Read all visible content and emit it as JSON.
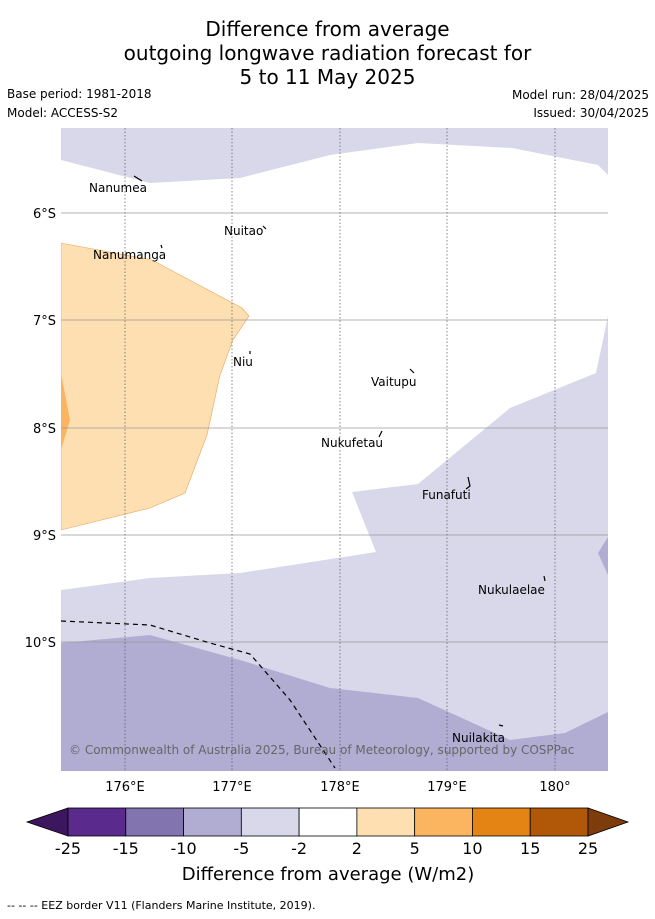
{
  "title_lines": [
    "Difference from average",
    "outgoing longwave radiation forecast for",
    "5 to 11 May 2025"
  ],
  "meta": {
    "base_period": "Base period: 1981-2018",
    "model": "Model: ACCESS-S2",
    "model_run": "Model run: 28/04/2025",
    "issued": "Issued: 30/04/2025"
  },
  "map": {
    "longitude_labels": [
      "176°E",
      "177°E",
      "178°E",
      "179°E",
      "180°"
    ],
    "latitude_labels": [
      "6°S",
      "7°S",
      "8°S",
      "9°S",
      "10°S"
    ],
    "places": [
      {
        "name": "Nanumea"
      },
      {
        "name": "Nuitao"
      },
      {
        "name": "Nanumanga"
      },
      {
        "name": "Niu"
      },
      {
        "name": "Vaitupu"
      },
      {
        "name": "Nukufetau"
      },
      {
        "name": "Funafuti"
      },
      {
        "name": "Nukulaelae"
      },
      {
        "name": "Nuilakita"
      }
    ],
    "copyright": "© Commonwealth of Australia 2025, Bureau of Meteorology, supported by COSPPac"
  },
  "colorbar": {
    "tick_labels": [
      "-25",
      "-15",
      "-10",
      "-5",
      "-2",
      "2",
      "5",
      "10",
      "15",
      "25"
    ],
    "colors": [
      "#3d1660",
      "#5a2a8c",
      "#8274ae",
      "#b1acd2",
      "#d8d8ea",
      "#ffffff",
      "#fddfb2",
      "#fbb560",
      "#e38414",
      "#b15808",
      "#7e3b0c"
    ],
    "label": "Difference from average (W/m2)"
  },
  "footer": {
    "legend_text": "-- -- -- EEZ border V11 (Flanders Marine Institute, 2019)."
  }
}
